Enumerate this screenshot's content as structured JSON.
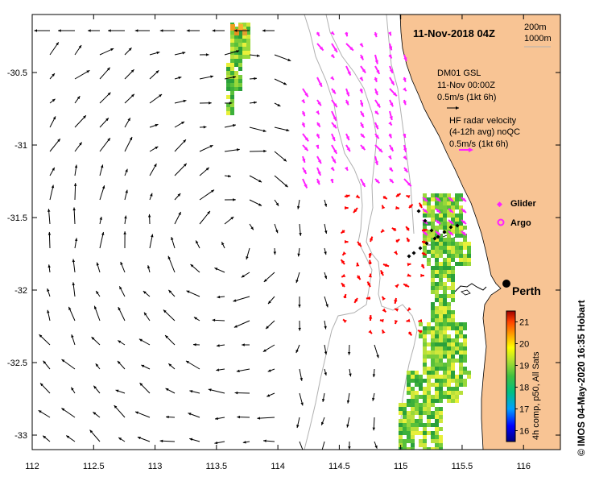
{
  "title": "11-Nov-2018 04Z",
  "depth_legend": [
    "200m",
    "1000m"
  ],
  "mooring": {
    "name": "DM01 GSL",
    "time": "11-Nov 00:00Z",
    "scale": "0.5m/s (1kt 6h)"
  },
  "hf_radar": {
    "line1": "HF radar velocity",
    "line2": "(4-12h avg) noQC",
    "scale": "0.5m/s (1kt 6h)"
  },
  "legend": {
    "glider": "Glider",
    "argo": "Argo"
  },
  "city": "Perth",
  "colorbar": {
    "label": "4h comp, p50, All Sats",
    "ticks": [
      "21",
      "20",
      "19",
      "18",
      "17",
      "16"
    ],
    "min": 15.5,
    "max": 21.5
  },
  "axes": {
    "x_ticks": [
      "112",
      "112.5",
      "113",
      "113.5",
      "114",
      "114.5",
      "115",
      "115.5",
      "116"
    ],
    "y_ticks": [
      "-30.5",
      "-31",
      "-31.5",
      "-32",
      "-32.5",
      "-33"
    ],
    "x_range": [
      112,
      116.3
    ],
    "y_range": [
      -33.1,
      -30.1
    ]
  },
  "credit": "© IMOS 04-May-2020 16:35 Hobart",
  "colors": {
    "land": "#f8c494",
    "arrow_black": "#000000",
    "arrow_magenta": "#ff20ff",
    "arrow_red": "#ff0000"
  }
}
